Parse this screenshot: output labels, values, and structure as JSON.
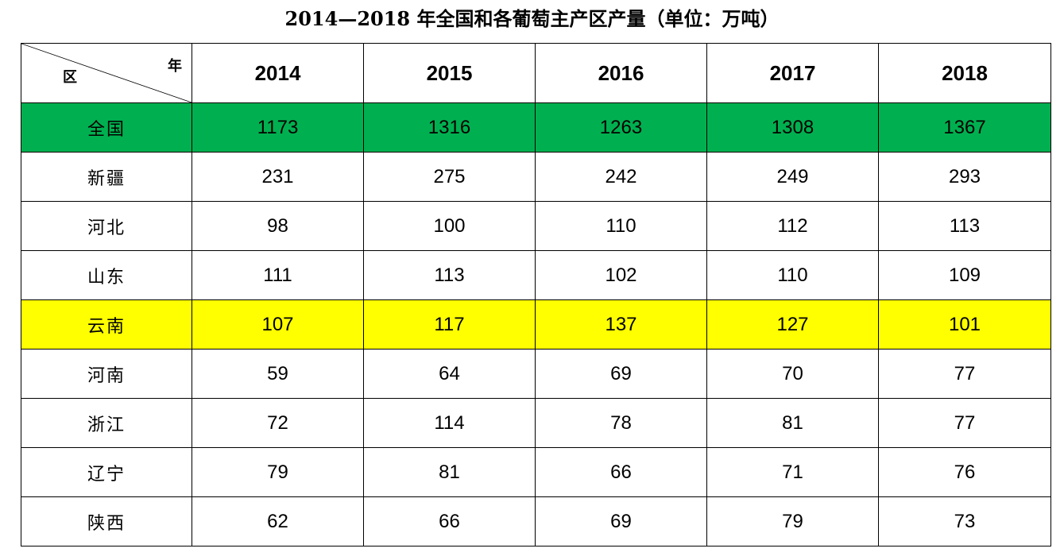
{
  "title": "2014—2018 年全国和各葡萄主产区产量（单位：万吨）",
  "corner": {
    "row_label": "区",
    "col_label": "年"
  },
  "years": [
    "2014",
    "2015",
    "2016",
    "2017",
    "2018"
  ],
  "colors": {
    "highlight_green": "#00b050",
    "highlight_yellow": "#ffff00"
  },
  "rows": [
    {
      "region": "全国",
      "values": [
        "1173",
        "1316",
        "1263",
        "1308",
        "1367"
      ],
      "highlight": "green"
    },
    {
      "region": "新疆",
      "values": [
        "231",
        "275",
        "242",
        "249",
        "293"
      ]
    },
    {
      "region": "河北",
      "values": [
        "98",
        "100",
        "110",
        "112",
        "113"
      ]
    },
    {
      "region": "山东",
      "values": [
        "111",
        "113",
        "102",
        "110",
        "109"
      ]
    },
    {
      "region": "云南",
      "values": [
        "107",
        "117",
        "137",
        "127",
        "101"
      ],
      "highlight": "yellow"
    },
    {
      "region": "河南",
      "values": [
        "59",
        "64",
        "69",
        "70",
        "77"
      ]
    },
    {
      "region": "浙江",
      "values": [
        "72",
        "114",
        "78",
        "81",
        "77"
      ]
    },
    {
      "region": "辽宁",
      "values": [
        "79",
        "81",
        "66",
        "71",
        "76"
      ]
    },
    {
      "region": "陕西",
      "values": [
        "62",
        "66",
        "69",
        "79",
        "73"
      ]
    }
  ]
}
